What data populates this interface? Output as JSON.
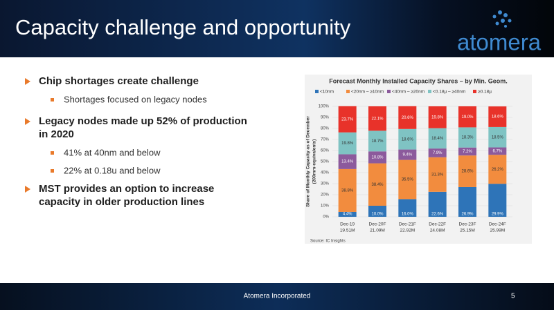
{
  "header": {
    "title": "Capacity challenge and opportunity",
    "logo": "atomera"
  },
  "bullets": [
    {
      "lines": [
        "Chip shortages create challenge"
      ],
      "sub": [
        "Shortages focused on legacy nodes"
      ]
    },
    {
      "lines": [
        "Legacy nodes made up 52% of production",
        "in 2020"
      ],
      "sub": [
        "41% at 40nm and below",
        "22% at 0.18u and below"
      ]
    },
    {
      "lines": [
        "MST provides an option to increase",
        "capacity in older production lines"
      ],
      "sub": []
    }
  ],
  "footer": {
    "company": "Atomera Incorporated",
    "page": "5"
  },
  "chart_data": {
    "type": "stacked-bar",
    "title": "Forecast Monthly Installed Capacity Shares – by Min. Geom.",
    "y_label": [
      "Share of Monthly Capacity as of December",
      "(200mm-equivalents)"
    ],
    "source": "Source:  IC Insights",
    "categories": [
      [
        "Dec-19",
        "19.51M"
      ],
      [
        "Dec-20F",
        "21.09M"
      ],
      [
        "Dec-21F",
        "22.92M"
      ],
      [
        "Dec-22F",
        "24.08M"
      ],
      [
        "Dec-23F",
        "25.15M"
      ],
      [
        "Dec-24F",
        "25.99M"
      ]
    ],
    "ylim": [
      0,
      100
    ],
    "yticks": [
      {
        "value": 0,
        "label": "0%"
      },
      {
        "value": 10,
        "label": "10%"
      },
      {
        "value": 20,
        "label": "20%"
      },
      {
        "value": 30,
        "label": "30%"
      },
      {
        "value": 40,
        "label": "40%"
      },
      {
        "value": 50,
        "label": "50%"
      },
      {
        "value": 60,
        "label": "60%"
      },
      {
        "value": 70,
        "label": "70%"
      },
      {
        "value": 80,
        "label": "80%"
      },
      {
        "value": 90,
        "label": "90%"
      },
      {
        "value": 100,
        "label": "100%"
      }
    ],
    "series": [
      {
        "name": "<10nm",
        "color": "#2e74b8",
        "label_color": "#ffffff",
        "values": [
          4.4,
          10.0,
          16.0,
          22.6,
          26.9,
          29.9
        ],
        "value_labels": [
          "4.4%",
          "10.0%",
          "16.0%",
          "22.6%",
          "26.9%",
          "29.9%"
        ]
      },
      {
        "name": "<20nm – ≥10nm",
        "color": "#f28c3e",
        "label_color": "#333333",
        "values": [
          38.8,
          38.4,
          35.5,
          31.3,
          28.6,
          26.2
        ],
        "value_labels": [
          "38.8%",
          "38.4%",
          "35.5%",
          "31.3%",
          "28.6%",
          "26.2%"
        ]
      },
      {
        "name": "<40nm – ≥20nm",
        "color": "#8c5a9c",
        "label_color": "#ffffff",
        "values": [
          13.4,
          10.8,
          9.4,
          7.9,
          7.2,
          6.7
        ],
        "value_labels": [
          "13.4%",
          "10.8%",
          "9.4%",
          "7.9%",
          "7.2%",
          "6.7%"
        ]
      },
      {
        "name": "<0.18µ – ≥40nm",
        "color": "#7fc3c3",
        "label_color": "#333333",
        "values": [
          19.8,
          18.7,
          18.6,
          18.4,
          18.3,
          18.5
        ],
        "value_labels": [
          "19.8%",
          "18.7%",
          "18.6%",
          "18.4%",
          "18.3%",
          "18.5%"
        ]
      },
      {
        "name": "≥0.18µ",
        "color": "#e8322a",
        "label_color": "#ffffff",
        "values": [
          23.7,
          22.1,
          20.6,
          19.8,
          19.0,
          18.6
        ],
        "value_labels": [
          "23.7%",
          "22.1%",
          "20.6%",
          "19.8%",
          "19.0%",
          "18.6%"
        ]
      }
    ]
  }
}
